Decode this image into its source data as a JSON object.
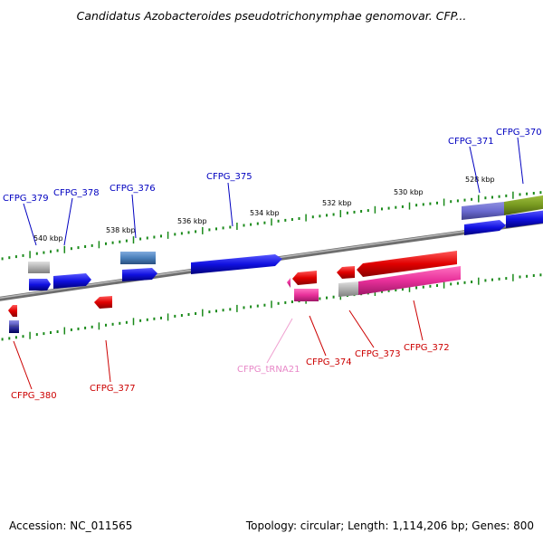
{
  "title": "Candidatus Azobacteroides pseudotrichonymphae genomovar. CFP...",
  "footer": {
    "accession": "Accession: NC_011565",
    "stats": "Topology: circular; Length: 1,114,206 bp; Genes: 800"
  },
  "colors": {
    "backbone": "#8a8a8a",
    "tick": "#1a8a1a",
    "blue_gene": "#1010e0",
    "red_gene": "#e00000",
    "pink_gene": "#e8309a",
    "trna": "#f0a0d0",
    "label_forward": "#0000c0",
    "label_reverse": "#cc0000",
    "label_trna": "#e888c8"
  },
  "scale_labels": [
    "540 kbp",
    "538 kbp",
    "536 kbp",
    "534 kbp",
    "532 kbp",
    "530 kbp",
    "528 kbp"
  ],
  "forward_genes": [
    "CFPG_379",
    "CFPG_378",
    "CFPG_376",
    "CFPG_375",
    "CFPG_371",
    "CFPG_370"
  ],
  "reverse_genes": [
    "CFPG_380",
    "CFPG_377",
    "CFPG_tRNA21",
    "CFPG_374",
    "CFPG_373",
    "CFPG_372"
  ]
}
